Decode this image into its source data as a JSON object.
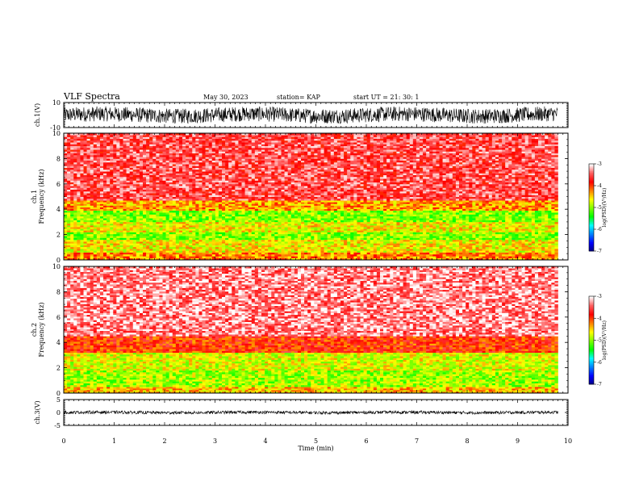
{
  "header": {
    "title": "VLF Spectra",
    "date": "May 30, 2023",
    "station": "station= KAP",
    "start": "start  UT  =   21: 30: 1"
  },
  "colors": {
    "colormap": [
      "#000080",
      "#0000ff",
      "#0080ff",
      "#00ffff",
      "#00ff00",
      "#80ff00",
      "#ffff00",
      "#ff8000",
      "#ff0000",
      "#ff6060",
      "#ffffff"
    ],
    "trace": "#000000"
  },
  "chart_data": [
    {
      "type": "line",
      "id": "ch1-waveform",
      "ylabel": "ch.1(V)",
      "ylim": [
        -10,
        10
      ],
      "y_ticks": [
        "10",
        "-10"
      ],
      "xlim": [
        0,
        10
      ],
      "description_values": {
        "amplitude_range_approx": [
          -6,
          6
        ],
        "trace_end_min": 9.8
      }
    },
    {
      "type": "heatmap",
      "id": "ch1-spectrogram",
      "ylabel": "ch.1\nFrequency  (kHz)",
      "ylim": [
        0,
        10
      ],
      "y_ticks": [
        "0",
        "2",
        "4",
        "6",
        "8",
        "10"
      ],
      "xlim": [
        0,
        10
      ],
      "data_end_min": 9.8,
      "colorbar": {
        "label": "log(PSD)(V²/Hz)",
        "range": [
          -7,
          -3
        ],
        "ticks": [
          "-3",
          "-4",
          "-5",
          "-6",
          "-7"
        ]
      },
      "bands": [
        {
          "f_low": 0,
          "f_high": 0.6,
          "log_psd": -4.2
        },
        {
          "f_low": 0.6,
          "f_high": 1.6,
          "log_psd": -4.6
        },
        {
          "f_low": 1.6,
          "f_high": 2.2,
          "log_psd": -5.0
        },
        {
          "f_low": 2.2,
          "f_high": 3.0,
          "log_psd": -4.6
        },
        {
          "f_low": 3.0,
          "f_high": 3.9,
          "log_psd": -5.0
        },
        {
          "f_low": 3.9,
          "f_high": 4.7,
          "log_psd": -4.3
        },
        {
          "f_low": 4.7,
          "f_high": 10,
          "log_psd": -3.5
        }
      ]
    },
    {
      "type": "heatmap",
      "id": "ch2-spectrogram",
      "ylabel": "ch.2\nFrequency  (kHz)",
      "ylim": [
        0,
        10
      ],
      "y_ticks": [
        "0",
        "2",
        "4",
        "6",
        "8",
        "10"
      ],
      "xlim": [
        0,
        10
      ],
      "data_end_min": 9.8,
      "colorbar": {
        "label": "log(PSD)(V²/Hz)",
        "range": [
          -7,
          -3
        ],
        "ticks": [
          "-3",
          "-4",
          "-5",
          "-6",
          "-7"
        ]
      },
      "bands": [
        {
          "f_low": 0,
          "f_high": 0.5,
          "log_psd": -4.4
        },
        {
          "f_low": 0.5,
          "f_high": 1.8,
          "log_psd": -4.9
        },
        {
          "f_low": 1.8,
          "f_high": 3.2,
          "log_psd": -4.7
        },
        {
          "f_low": 3.2,
          "f_high": 4.5,
          "log_psd": -3.9
        },
        {
          "f_low": 4.5,
          "f_high": 10,
          "log_psd": -3.3
        }
      ]
    },
    {
      "type": "line",
      "id": "ch3-waveform",
      "ylabel": "ch.3(V)",
      "ylim": [
        -5,
        5
      ],
      "y_ticks": [
        "5",
        "0",
        "-5"
      ],
      "xlim": [
        0,
        10
      ],
      "xlabel": "Time  (min)",
      "x_ticks": [
        "0",
        "1",
        "2",
        "3",
        "4",
        "5",
        "6",
        "7",
        "8",
        "9",
        "10"
      ],
      "description_values": {
        "amplitude_range_approx": [
          -0.6,
          0.6
        ],
        "trace_end_min": 9.8
      }
    }
  ]
}
